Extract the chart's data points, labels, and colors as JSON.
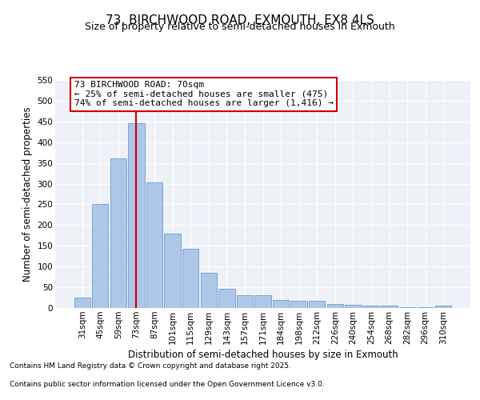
{
  "title": "73, BIRCHWOOD ROAD, EXMOUTH, EX8 4LS",
  "subtitle": "Size of property relative to semi-detached houses in Exmouth",
  "xlabel": "Distribution of semi-detached houses by size in Exmouth",
  "ylabel": "Number of semi-detached properties",
  "categories": [
    "31sqm",
    "45sqm",
    "59sqm",
    "73sqm",
    "87sqm",
    "101sqm",
    "115sqm",
    "129sqm",
    "143sqm",
    "157sqm",
    "171sqm",
    "184sqm",
    "198sqm",
    "212sqm",
    "226sqm",
    "240sqm",
    "254sqm",
    "268sqm",
    "282sqm",
    "296sqm",
    "310sqm"
  ],
  "values": [
    25,
    250,
    360,
    445,
    303,
    180,
    143,
    85,
    47,
    30,
    30,
    20,
    17,
    18,
    9,
    8,
    6,
    6,
    2,
    2,
    5
  ],
  "bar_color": "#aec6e8",
  "bar_edge_color": "#5a8fc0",
  "highlight_index": 3,
  "highlight_line_color": "#cc0000",
  "annotation_line1": "73 BIRCHWOOD ROAD: 70sqm",
  "annotation_line2": "← 25% of semi-detached houses are smaller (475)",
  "annotation_line3": "74% of semi-detached houses are larger (1,416) →",
  "annotation_box_color": "#cc0000",
  "ylim": [
    0,
    550
  ],
  "yticks": [
    0,
    50,
    100,
    150,
    200,
    250,
    300,
    350,
    400,
    450,
    500,
    550
  ],
  "footer_line1": "Contains HM Land Registry data © Crown copyright and database right 2025.",
  "footer_line2": "Contains public sector information licensed under the Open Government Licence v3.0.",
  "bg_color": "#eef2f8",
  "grid_color": "#ffffff",
  "title_fontsize": 11,
  "subtitle_fontsize": 9,
  "axis_label_fontsize": 8.5,
  "tick_fontsize": 7.5,
  "annotation_fontsize": 8,
  "footer_fontsize": 6.5
}
